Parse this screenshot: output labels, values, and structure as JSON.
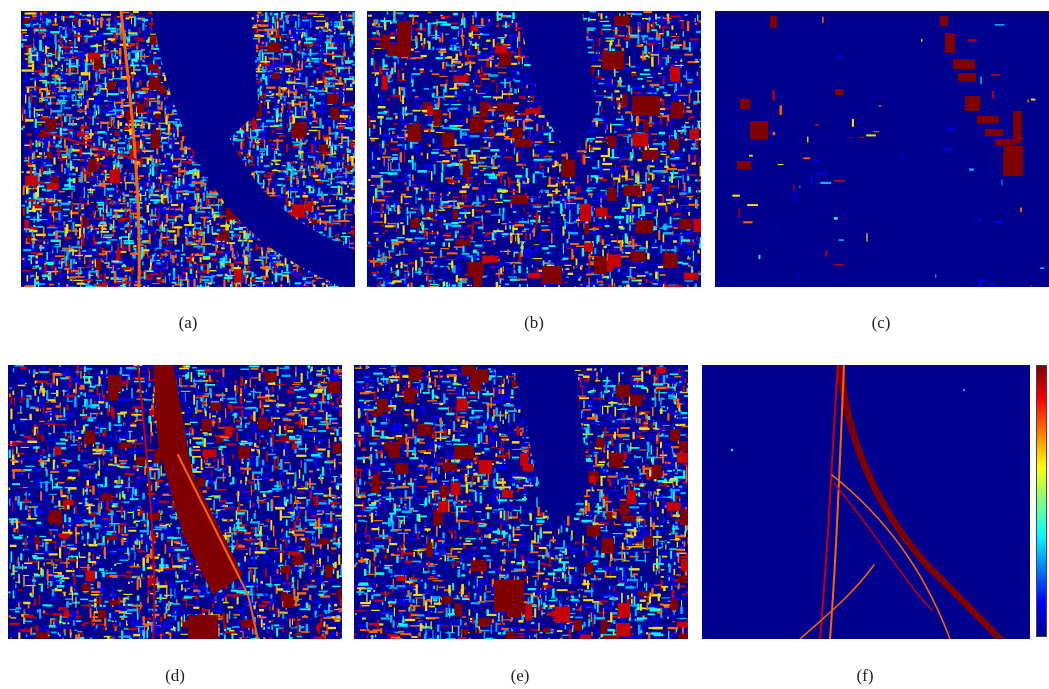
{
  "figure": {
    "panels": [
      {
        "id": "a",
        "caption": "(a)",
        "density": "very high",
        "dominant": "speckled urban texture across whole tile"
      },
      {
        "id": "b",
        "caption": "(b)",
        "density": "medium",
        "dominant": "speckled texture with red building blocks"
      },
      {
        "id": "c",
        "caption": "(c)",
        "density": "very low",
        "dominant": "sparse red blocks on dark blue"
      },
      {
        "id": "d",
        "caption": "(d)",
        "density": "medium",
        "dominant": "speckle plus large red railway-yard region"
      },
      {
        "id": "e",
        "caption": "(e)",
        "density": "medium",
        "dominant": "speckle with red building footprints"
      },
      {
        "id": "f",
        "caption": "(f)",
        "density": "very low",
        "dominant": "thin red railway lines"
      }
    ],
    "colorbar": {
      "colormap": "jet",
      "colors": [
        "#00008f",
        "#0000ff",
        "#007fff",
        "#00ffff",
        "#7fff7f",
        "#ffff00",
        "#ff7f00",
        "#ff0000",
        "#7f0000"
      ]
    },
    "colors": {
      "background": "#00008f",
      "blue": "#0000ff",
      "lightblue": "#00b4ff",
      "cyan": "#00ffff",
      "yellow": "#ffdc00",
      "orange": "#ff6400",
      "red": "#c80000",
      "darkred": "#800000"
    }
  }
}
